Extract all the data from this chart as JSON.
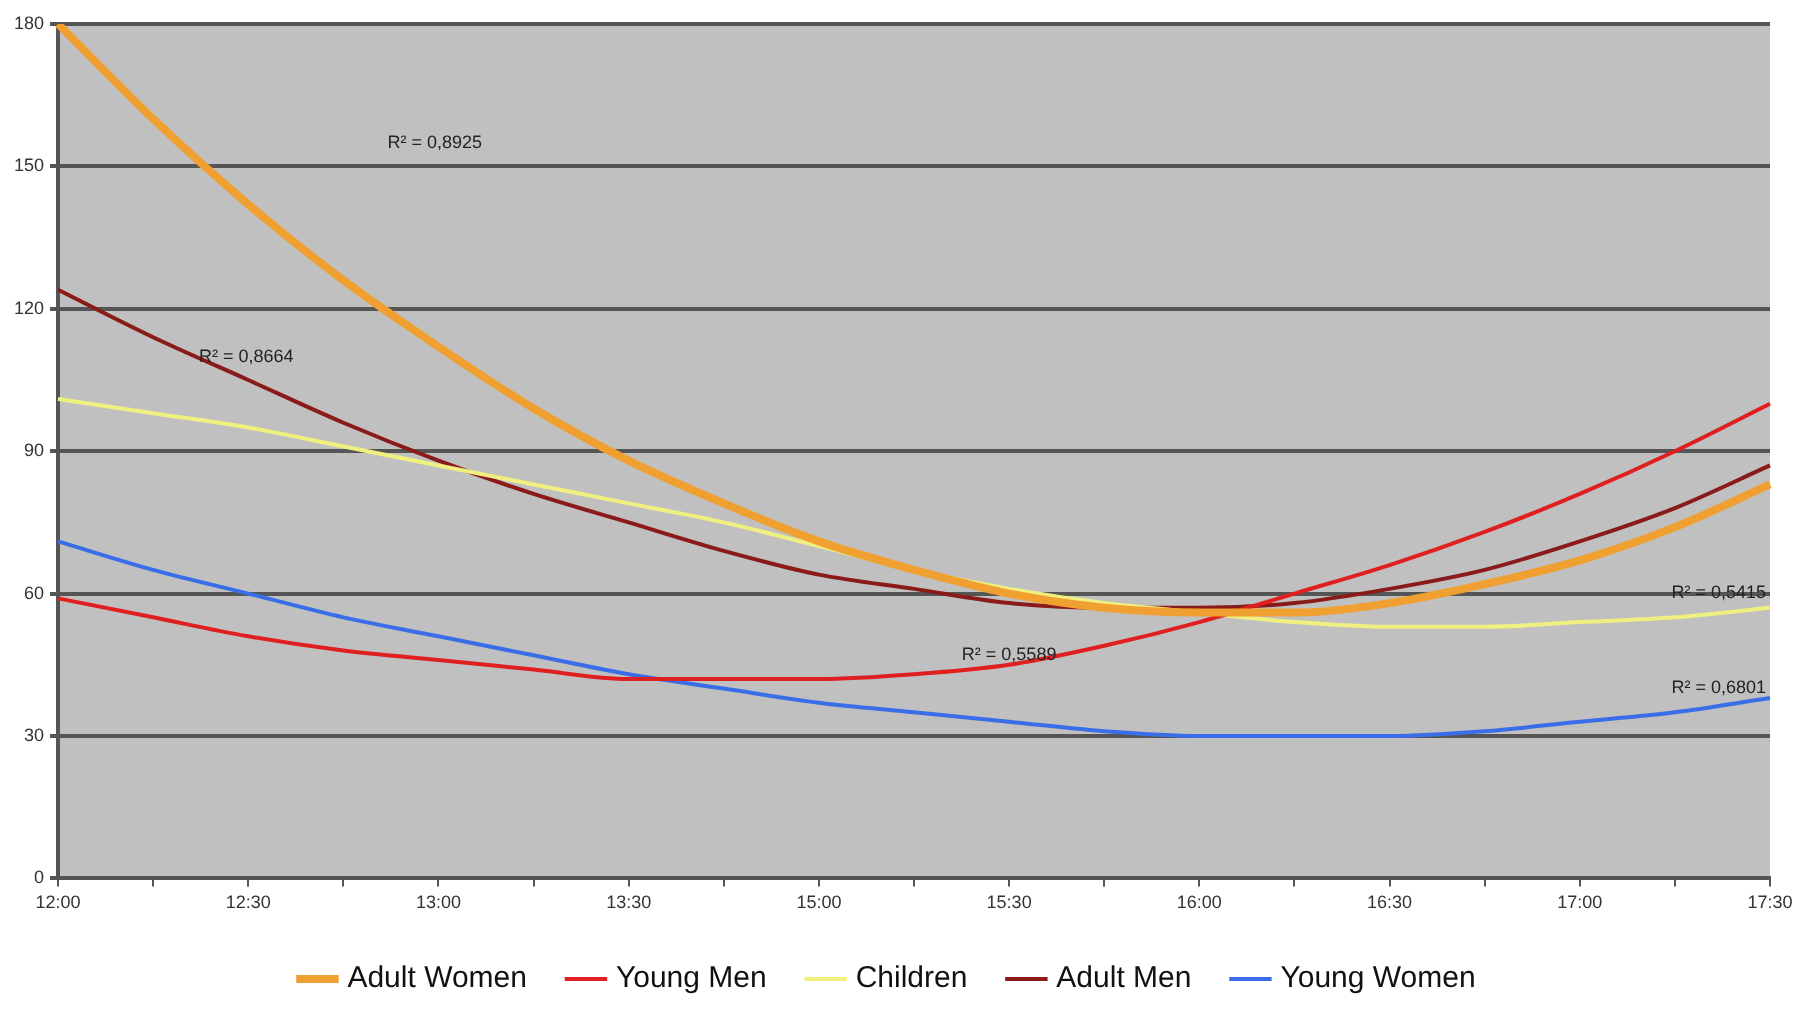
{
  "chart_data": {
    "type": "line",
    "categories": [
      "12:00",
      null,
      "12:30",
      null,
      "13:00",
      null,
      "13:30",
      null,
      "15:00",
      null,
      "15:30",
      null,
      "16:00",
      null,
      "16:30",
      null,
      "17:00",
      null,
      "17:30"
    ],
    "series": [
      {
        "name": "Adult Women",
        "color": "#f0a030",
        "values": [
          180,
          160,
          142,
          126,
          112,
          99,
          88,
          79,
          71,
          65,
          60,
          57,
          56,
          56,
          58,
          62,
          67,
          74,
          83
        ]
      },
      {
        "name": "Young Men",
        "color": "#e02020",
        "values": [
          59,
          55,
          51,
          48,
          46,
          44,
          42,
          42,
          42,
          43,
          45,
          49,
          54,
          60,
          66,
          73,
          81,
          90,
          100
        ]
      },
      {
        "name": "Children",
        "color": "#f0f080",
        "values": [
          101,
          98,
          95,
          91,
          87,
          83,
          79,
          75,
          70,
          65,
          61,
          58,
          56,
          54,
          53,
          53,
          54,
          55,
          57
        ]
      },
      {
        "name": "Adult Men",
        "color": "#8b1a1a",
        "values": [
          124,
          114,
          105,
          96,
          88,
          81,
          75,
          69,
          64,
          61,
          58,
          57,
          57,
          58,
          61,
          65,
          71,
          78,
          87
        ]
      },
      {
        "name": "Young Women",
        "color": "#3a6ee8",
        "values": [
          71,
          65,
          60,
          55,
          51,
          47,
          43,
          40,
          37,
          35,
          33,
          31,
          30,
          30,
          30,
          31,
          33,
          35,
          38
        ]
      }
    ],
    "ylim": [
      0,
      180
    ],
    "yticks": [
      0,
      30,
      60,
      90,
      120,
      150,
      180
    ],
    "grid": "y",
    "legend": "bottom",
    "marker": "none",
    "line_style": "solid",
    "annotations": [
      "R² = 0,8925",
      "R² = 0,8664",
      {
        "text": "R² = 0,5589",
        "x": "15:30",
        "y": 44
      },
      {
        "text": "R² = 0,5415",
        "x": "17:30",
        "y": 57
      },
      {
        "text": "R² = 0,6801",
        "x": "17:30",
        "y": 37
      }
    ]
  }
}
